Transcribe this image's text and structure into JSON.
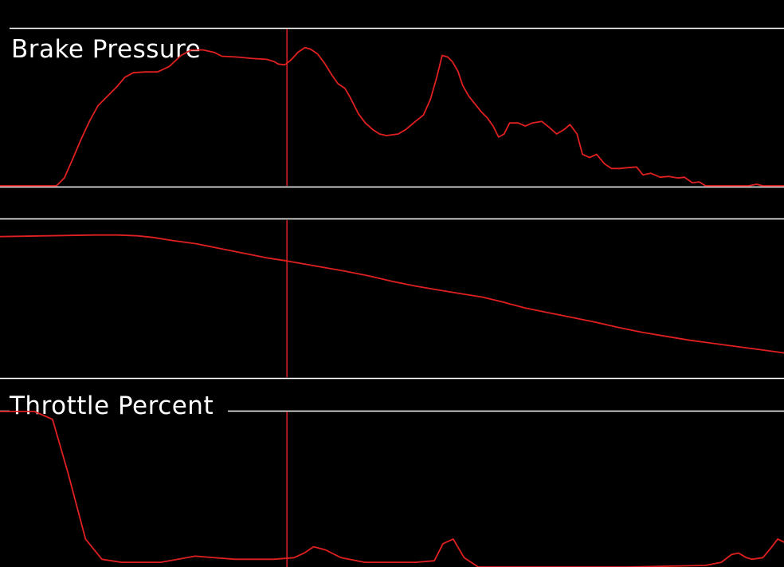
{
  "colors": {
    "background": "#000000",
    "frame": "#ffffff",
    "trace": "#e02020",
    "cursor": "#e02020",
    "title": "#ffffff"
  },
  "cursor": {
    "x": 36.6
  },
  "chart_data": [
    {
      "type": "line",
      "title": "Brake Pressure",
      "xlim": [
        0,
        100
      ],
      "ylim": [
        0,
        100
      ],
      "grid": false,
      "series": [
        {
          "x": [
            0,
            7.2,
            8.2,
            9.1,
            10.2,
            11.4,
            12.5,
            13.7,
            14.9,
            15.9,
            17.0,
            18.5,
            20.1,
            21.6,
            23.1,
            24.4,
            25.9,
            27.3,
            28.3,
            30.2,
            32.3,
            34.0,
            35.0,
            35.5,
            36.3,
            37.1,
            38.0,
            38.9,
            39.6,
            40.5,
            41.4,
            42.4,
            43.1,
            44.0,
            44.7,
            45.7,
            46.6,
            47.5,
            48.4,
            49.3,
            50.8,
            51.8,
            53.0,
            54.0,
            54.9,
            55.7,
            56.4,
            57.1,
            57.7,
            58.4,
            59.0,
            59.8,
            60.6,
            61.4,
            62.2,
            62.9,
            63.6,
            64.3,
            65.0,
            66.1,
            67.0,
            67.9,
            69.1,
            70.1,
            71.0,
            72.0,
            72.7,
            73.6,
            74.3,
            75.2,
            76.1,
            77.1,
            78.0,
            79.0,
            80.0,
            81.2,
            82.0,
            83.0,
            84.2,
            85.3,
            86.5,
            87.3,
            88.3,
            89.2,
            90.0,
            90.7,
            91.6,
            92.4,
            93.2,
            94.5,
            95.5,
            96.5,
            97.3,
            98.2,
            99.0,
            100
          ],
          "y": [
            0,
            0,
            5,
            15,
            28,
            41,
            51,
            57,
            63,
            69,
            72,
            72.5,
            72.5,
            76,
            83,
            86.5,
            86.5,
            85,
            82.5,
            82,
            81,
            80.5,
            79,
            77.5,
            77,
            80,
            85,
            88,
            87,
            84,
            78,
            70,
            65,
            62,
            56,
            46,
            40,
            36,
            33,
            32,
            33,
            36,
            41,
            45,
            55,
            69,
            83,
            82,
            79,
            73,
            64,
            57,
            52,
            47,
            43,
            38,
            31,
            33,
            40,
            40,
            38,
            40,
            41,
            37,
            33,
            36,
            39,
            33,
            20,
            18,
            20,
            14,
            11,
            11,
            11.5,
            12,
            7,
            8,
            5.5,
            6,
            5,
            5.5,
            2,
            2.5,
            0,
            0,
            0,
            0,
            0,
            0,
            0,
            1,
            0,
            0,
            0,
            0
          ]
        }
      ]
    },
    {
      "type": "line",
      "title": "",
      "xlim": [
        0,
        100
      ],
      "ylim": [
        0,
        100
      ],
      "grid": false,
      "series": [
        {
          "x": [
            0,
            6,
            12,
            15,
            17.5,
            19.5,
            22,
            25,
            28,
            31,
            34,
            36.6,
            40,
            44,
            47,
            50,
            53,
            56,
            59,
            61.5,
            64,
            67,
            70,
            73,
            76,
            79,
            82,
            85,
            88,
            91,
            94,
            97,
            100
          ],
          "y": [
            89.5,
            90,
            90.5,
            90.5,
            90,
            89,
            87,
            85,
            82,
            79,
            76,
            74,
            71,
            67.5,
            64.5,
            61,
            58,
            55.5,
            53,
            51,
            48,
            44,
            41,
            38,
            35,
            31.5,
            28.5,
            26,
            23.5,
            21.5,
            19.5,
            17.5,
            15.5
          ]
        }
      ]
    },
    {
      "type": "line",
      "title": "Throttle Percent",
      "xlim": [
        0,
        100
      ],
      "ylim": [
        0,
        100
      ],
      "grid": false,
      "series": [
        {
          "x": [
            0,
            4.4,
            6.7,
            8.7,
            10.9,
            13.0,
            15.5,
            17.5,
            20.5,
            24.9,
            30.0,
            34.9,
            37.5,
            38.8,
            40.0,
            41.5,
            43.5,
            46.5,
            50.0,
            53.0,
            55.4,
            56.5,
            57.8,
            59.2,
            61.0,
            70.0,
            80.0,
            90.0,
            92.0,
            93.3,
            94.2,
            95.2,
            95.9,
            97.3,
            98.3,
            99.2,
            100
          ],
          "y": [
            100,
            100,
            95,
            60,
            18,
            5,
            3,
            3,
            3,
            7,
            5,
            5,
            6,
            9,
            13,
            11,
            6,
            3,
            3,
            3,
            4,
            15,
            18,
            6,
            0,
            0,
            0,
            1,
            3,
            8,
            9,
            6,
            5,
            6,
            12,
            18,
            16
          ]
        }
      ]
    }
  ]
}
